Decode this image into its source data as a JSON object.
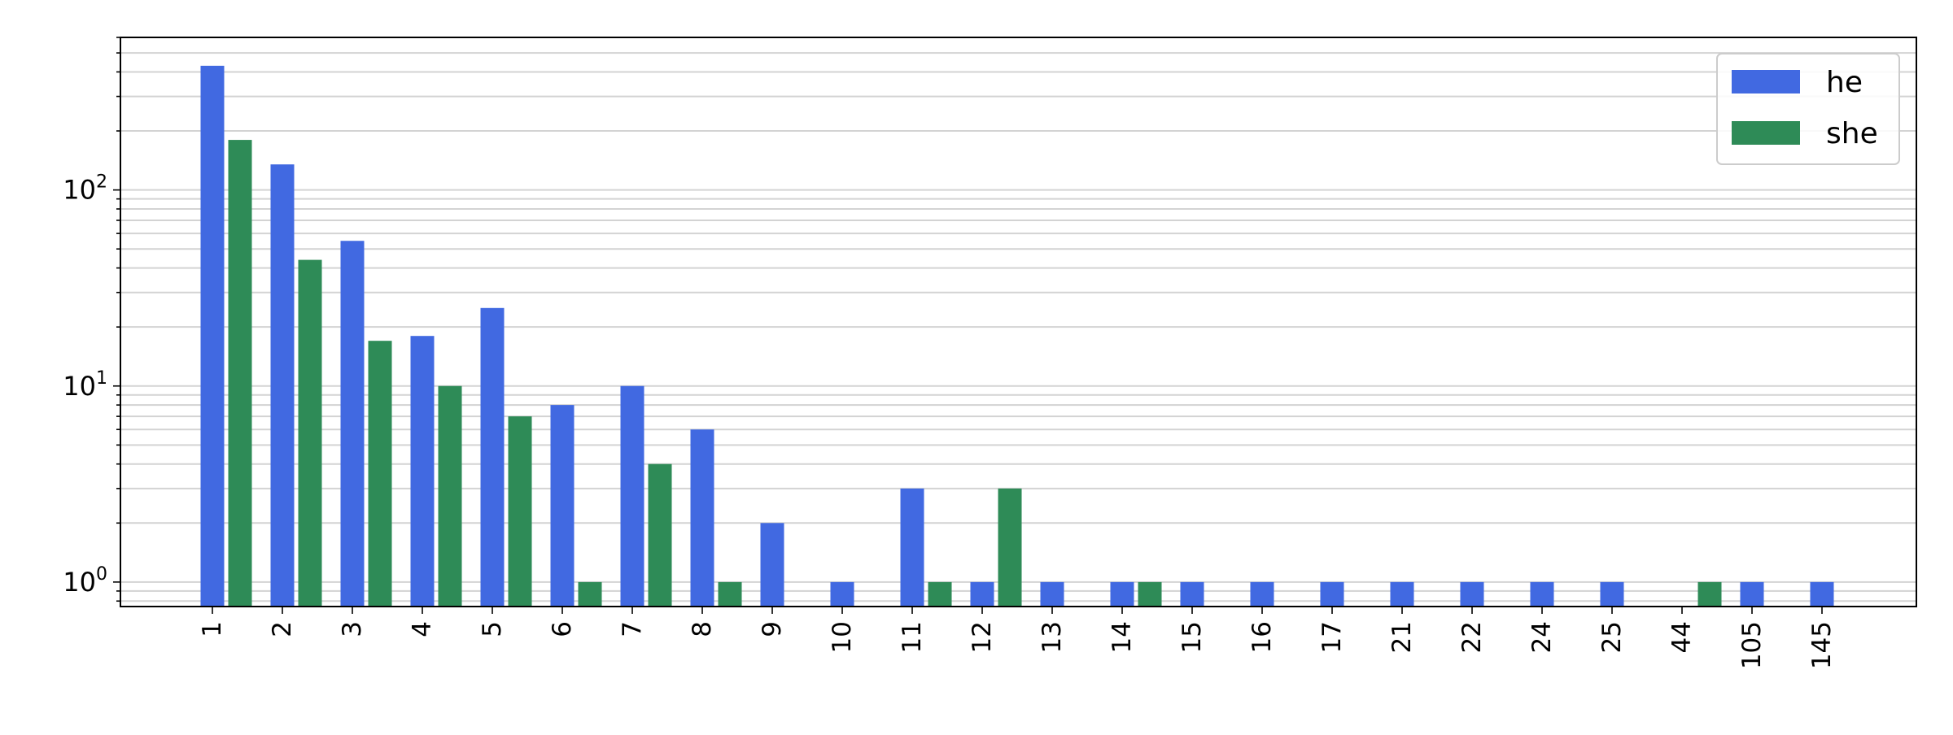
{
  "chart_data": {
    "type": "bar",
    "yscale": "log",
    "ylim": [
      0.75,
      600
    ],
    "categories": [
      "1",
      "2",
      "3",
      "4",
      "5",
      "6",
      "7",
      "8",
      "9",
      "10",
      "11",
      "12",
      "13",
      "14",
      "15",
      "16",
      "17",
      "21",
      "22",
      "24",
      "25",
      "44",
      "105",
      "145"
    ],
    "series": [
      {
        "name": "he",
        "color": "#4169e1",
        "values": [
          430,
          135,
          55,
          18,
          25,
          8,
          10,
          6,
          2,
          1,
          3,
          1,
          1,
          1,
          1,
          1,
          1,
          1,
          1,
          1,
          1,
          0,
          1,
          1
        ]
      },
      {
        "name": "she",
        "color": "#2e8b57",
        "values": [
          180,
          44,
          17,
          10,
          7,
          1,
          4,
          1,
          0,
          0,
          1,
          3,
          0,
          1,
          0,
          0,
          0,
          0,
          0,
          0,
          0,
          1,
          0,
          0
        ]
      }
    ],
    "yticks": [
      {
        "value": 1,
        "base": "10",
        "exp": "0"
      },
      {
        "value": 10,
        "base": "10",
        "exp": "1"
      },
      {
        "value": 100,
        "base": "10",
        "exp": "2"
      }
    ],
    "grid": true,
    "legend": "top-right",
    "title": "",
    "xlabel": "",
    "ylabel": ""
  }
}
